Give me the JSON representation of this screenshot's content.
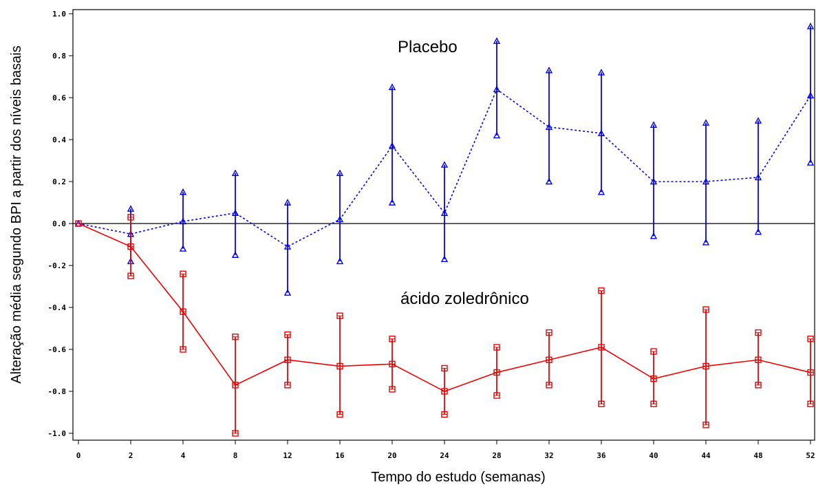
{
  "chart_data": {
    "type": "line",
    "xlabel": "Tempo do estudo (semanas)",
    "ylabel": "Alteração média segundo BPI a partir dos níveis basais",
    "x": [
      0,
      2,
      4,
      8,
      12,
      16,
      20,
      24,
      28,
      32,
      36,
      40,
      44,
      48,
      52
    ],
    "x_tick_labels": [
      "0",
      "2",
      "4",
      "8",
      "12",
      "16",
      "20",
      "24",
      "28",
      "32",
      "36",
      "40",
      "44",
      "48",
      "52"
    ],
    "y_ticks": [
      1.0,
      0.8,
      0.6,
      0.4,
      0.2,
      0.0,
      -0.2,
      -0.4,
      -0.6,
      -0.8,
      -1.0
    ],
    "y_tick_labels": [
      "1.0",
      "0.8",
      "0.6",
      "0.4",
      "0.2",
      "0.0",
      "-0.2",
      "-0.4",
      "-0.6",
      "-0.8",
      "-1.0"
    ],
    "ylim": [
      -1.02,
      1.03
    ],
    "reference_line_y": 0,
    "grid": false,
    "series": [
      {
        "name": "Placebo",
        "color": "#0000ee",
        "line_style": "dashed",
        "marker": "triangle",
        "values": [
          0.0,
          -0.05,
          0.01,
          0.05,
          -0.11,
          0.02,
          0.37,
          0.05,
          0.64,
          0.46,
          0.43,
          0.2,
          0.2,
          0.22,
          0.61
        ],
        "upper": [
          0.0,
          0.07,
          0.15,
          0.24,
          0.1,
          0.24,
          0.65,
          0.28,
          0.87,
          0.73,
          0.72,
          0.47,
          0.48,
          0.49,
          0.94
        ],
        "lower": [
          0.0,
          -0.18,
          -0.12,
          -0.15,
          -0.33,
          -0.18,
          0.1,
          -0.17,
          0.42,
          0.2,
          0.15,
          -0.06,
          -0.09,
          -0.04,
          0.29
        ]
      },
      {
        "name": "ácido zoledrônico",
        "color": "#ee0000",
        "line_style": "solid",
        "marker": "square",
        "values": [
          0.0,
          -0.11,
          -0.42,
          -0.77,
          -0.65,
          -0.68,
          -0.67,
          -0.8,
          -0.71,
          -0.65,
          -0.59,
          -0.74,
          -0.68,
          -0.65,
          -0.71
        ],
        "upper": [
          0.0,
          0.03,
          -0.24,
          -0.54,
          -0.53,
          -0.44,
          -0.55,
          -0.69,
          -0.59,
          -0.52,
          -0.32,
          -0.61,
          -0.41,
          -0.52,
          -0.55
        ],
        "lower": [
          0.0,
          -0.25,
          -0.6,
          -1.0,
          -0.77,
          -0.91,
          -0.79,
          -0.91,
          -0.82,
          -0.77,
          -0.86,
          -0.86,
          -0.96,
          -0.77,
          -0.86
        ]
      }
    ]
  }
}
